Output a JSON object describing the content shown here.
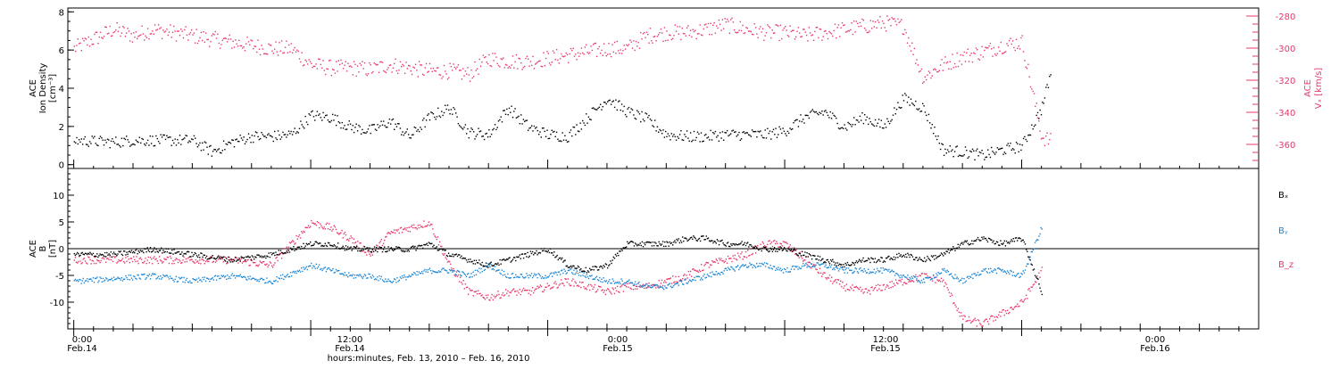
{
  "colors": {
    "black": "#000000",
    "pink": "#e8386a",
    "blue": "#1b86d6"
  },
  "bottom_labels": {
    "ticks": [
      {
        "time": "0:00",
        "date": "Feb.14"
      },
      {
        "time": "12:00",
        "date": "Feb.14"
      },
      {
        "time": "0:00",
        "date": "Feb.15"
      },
      {
        "time": "12:00",
        "date": "Feb.15"
      },
      {
        "time": "0:00",
        "date": "Feb.16"
      }
    ],
    "axis_title": "hours:minutes, Feb. 13, 2010 – Feb. 16, 2010"
  },
  "chart_data": [
    {
      "type": "scatter",
      "panel": "top",
      "ylabel_left": [
        "ACE",
        "Ion Density",
        "[cm⁻³]"
      ],
      "ylabel_right": [
        "ACE",
        "Vₓ [km/s]"
      ],
      "xlim_hours": [
        -0.3,
        60.0
      ],
      "ylim_left": [
        -0.2,
        8.2
      ],
      "ylim_right": [
        -375,
        -275
      ],
      "yticks_left": [
        "0",
        "2",
        "4",
        "6",
        "8"
      ],
      "yticks_right": [
        "-280",
        "-300",
        "-320",
        "-340",
        "-360"
      ],
      "series": [
        {
          "axis": "left",
          "color": "#000000",
          "x": [
            0,
            2,
            3,
            5,
            6,
            7,
            8,
            9,
            10,
            11,
            12,
            13,
            14,
            15,
            16,
            17,
            18,
            19,
            20,
            21,
            22,
            23,
            24,
            25,
            26,
            27,
            28,
            29,
            30,
            31,
            32,
            33,
            34,
            35,
            36,
            37,
            38,
            39,
            40,
            41,
            42,
            43,
            44,
            45,
            46,
            47,
            48,
            49,
            49.5
          ],
          "y": [
            1.3,
            1.2,
            1.3,
            1.3,
            1.3,
            0.7,
            1.2,
            1.5,
            1.5,
            1.6,
            2.6,
            2.5,
            2.0,
            1.8,
            2.3,
            1.5,
            2.5,
            3.0,
            1.7,
            1.6,
            3.0,
            2.0,
            1.6,
            1.5,
            2.5,
            3.5,
            2.8,
            2.4,
            1.6,
            1.5,
            1.5,
            1.6,
            1.6,
            1.6,
            1.8,
            2.5,
            2.8,
            2.0,
            2.5,
            2.0,
            3.5,
            3.0,
            0.8,
            0.7,
            0.5,
            0.8,
            1.0,
            3.0,
            5.0
          ]
        },
        {
          "axis": "right",
          "color": "#e8386a",
          "x": [
            0,
            2,
            3,
            4,
            5,
            6,
            7,
            8,
            9,
            10,
            11,
            12,
            13,
            14,
            15,
            16,
            17,
            18,
            19,
            20,
            21,
            22,
            23,
            24,
            25,
            26,
            27,
            28,
            29,
            30,
            31,
            32,
            33,
            34,
            35,
            36,
            37,
            38,
            39,
            40,
            41,
            42,
            43,
            44,
            45,
            46,
            47,
            48,
            49,
            49.5
          ],
          "y": [
            -300,
            -288,
            -292,
            -288,
            -290,
            -292,
            -294,
            -296,
            -298,
            -300,
            -300,
            -310,
            -312,
            -312,
            -313,
            -310,
            -312,
            -314,
            -314,
            -316,
            -306,
            -308,
            -308,
            -306,
            -304,
            -302,
            -300,
            -300,
            -292,
            -290,
            -290,
            -288,
            -285,
            -288,
            -290,
            -290,
            -292,
            -290,
            -288,
            -286,
            -284,
            -286,
            -318,
            -310,
            -305,
            -302,
            -298,
            -296,
            -355,
            -358
          ]
        }
      ]
    },
    {
      "type": "scatter",
      "panel": "bottom",
      "ylabel_left": [
        "ACE",
        "B",
        "[nT]"
      ],
      "xlim_hours": [
        -0.3,
        60.0
      ],
      "ylim": [
        -15,
        15
      ],
      "yticks": [
        "10",
        "5",
        "0",
        "-5",
        "-10"
      ],
      "zero_line": true,
      "series": [
        {
          "name": "Bₓ",
          "color": "#000000",
          "x": [
            0,
            2,
            4,
            6,
            8,
            10,
            12,
            13,
            14,
            15,
            16,
            17,
            18,
            19,
            20,
            21,
            22,
            23,
            24,
            25,
            26,
            27,
            28,
            29,
            30,
            31,
            32,
            33,
            34,
            35,
            36,
            37,
            38,
            39,
            40,
            41,
            42,
            43,
            44,
            45,
            46,
            47,
            48,
            49
          ],
          "y": [
            -1,
            -1,
            0,
            -1,
            -2,
            -1,
            1,
            1,
            0,
            0,
            0,
            0,
            1,
            -1,
            -2,
            -3,
            -2,
            -1,
            0,
            -3,
            -4,
            -3,
            1,
            1,
            1,
            2,
            2,
            1,
            1,
            0,
            0,
            -1,
            -2,
            -3,
            -2,
            -2,
            -1,
            -2,
            -1,
            1,
            2,
            1,
            2,
            -8
          ]
        },
        {
          "name": "Bᵧ",
          "color": "#1b86d6",
          "x": [
            0,
            2,
            4,
            6,
            8,
            10,
            12,
            13,
            14,
            15,
            16,
            17,
            18,
            19,
            20,
            21,
            22,
            23,
            24,
            25,
            26,
            27,
            28,
            29,
            30,
            31,
            32,
            33,
            34,
            35,
            36,
            37,
            38,
            39,
            40,
            41,
            42,
            43,
            44,
            45,
            46,
            47,
            48,
            49
          ],
          "y": [
            -6,
            -5.5,
            -5,
            -6,
            -5,
            -6,
            -3,
            -4,
            -5,
            -5,
            -6,
            -5,
            -4,
            -4,
            -5,
            -3,
            -5,
            -5,
            -5,
            -4,
            -5,
            -6,
            -6,
            -7,
            -7,
            -6,
            -5,
            -4,
            -3,
            -3,
            -4,
            -3,
            -3,
            -4,
            -4,
            -4,
            -5,
            -6,
            -4,
            -6,
            -4,
            -4,
            -5,
            4
          ]
        },
        {
          "name": "B_z",
          "color": "#e8386a",
          "x": [
            0,
            2,
            4,
            6,
            8,
            10,
            12,
            13,
            14,
            15,
            16,
            17,
            18,
            19,
            20,
            21,
            22,
            23,
            24,
            25,
            26,
            27,
            28,
            29,
            30,
            31,
            32,
            33,
            34,
            35,
            36,
            37,
            38,
            39,
            40,
            41,
            42,
            43,
            44,
            45,
            46,
            47,
            48,
            49
          ],
          "y": [
            -2,
            -2,
            -2,
            -2,
            -2,
            -3,
            5,
            4,
            2,
            -1,
            3,
            4,
            5,
            -3,
            -8,
            -9,
            -8,
            -8,
            -7,
            -6,
            -7,
            -8,
            -7,
            -7,
            -6,
            -5,
            -3,
            -2,
            -1,
            1,
            1,
            -2,
            -5,
            -7,
            -8,
            -7,
            -6,
            -5,
            -6,
            -13,
            -14,
            -12,
            -10,
            -4
          ]
        }
      ]
    }
  ]
}
